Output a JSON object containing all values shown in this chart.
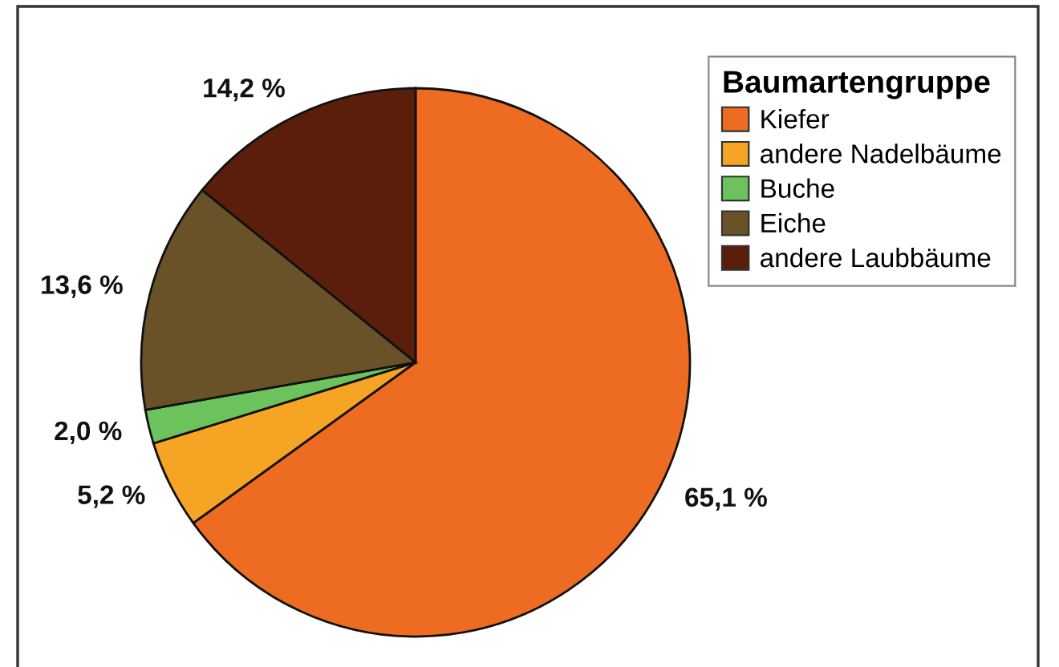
{
  "chart_data": {
    "type": "pie",
    "categories": [
      "Kiefer",
      "andere Nadelbäume",
      "Buche",
      "Eiche",
      "andere Laubbäume"
    ],
    "values": [
      65.1,
      5.2,
      2.0,
      13.6,
      14.2
    ],
    "colors": [
      "#ee6b22",
      "#f5a424",
      "#6cc35c",
      "#6a5228",
      "#5a1e0b"
    ],
    "value_labels": [
      "65,1 %",
      "5,2 %",
      "2,0 %",
      "13,6 %",
      "14,2 %"
    ],
    "legend_title": "Baumartengruppe",
    "legend": "top right"
  }
}
